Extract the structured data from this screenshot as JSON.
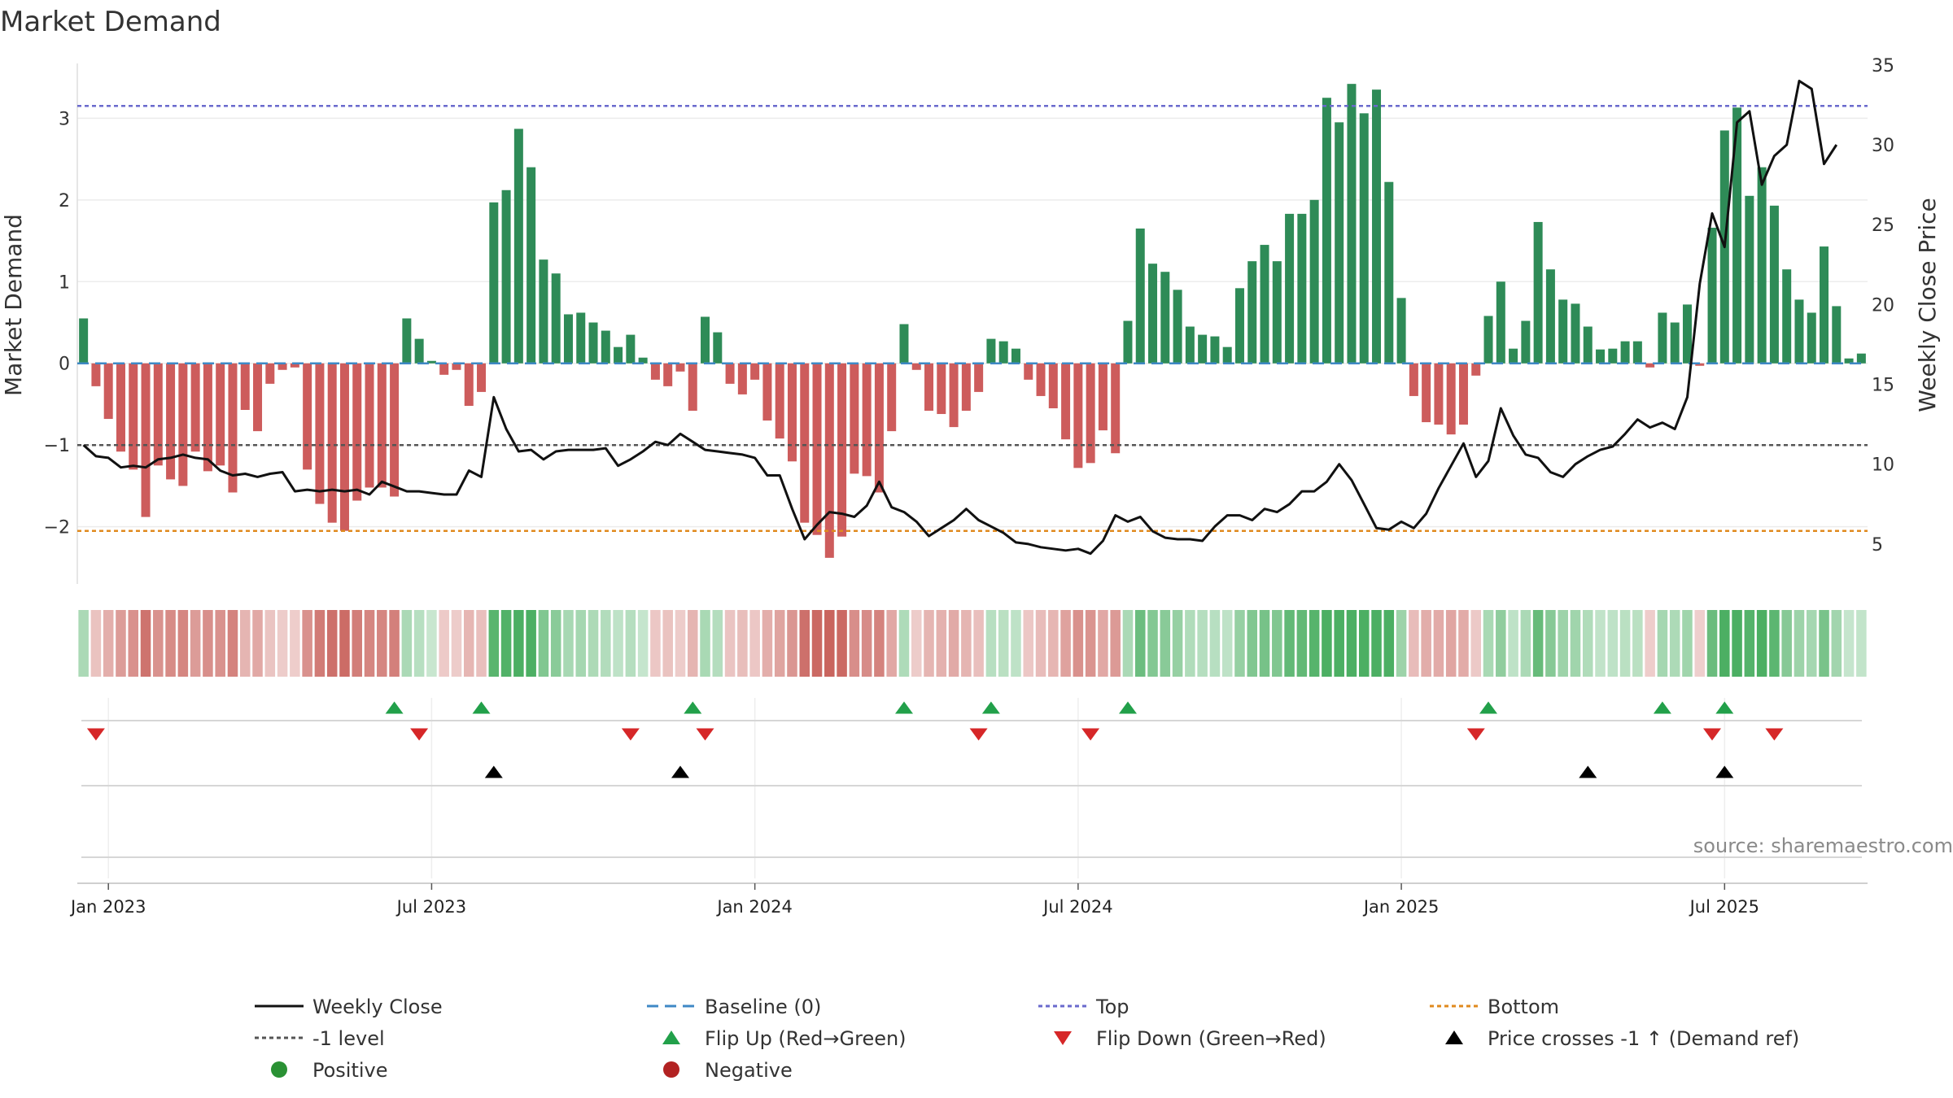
{
  "chart_data": {
    "type": "bar+line",
    "title": "Market Demand",
    "ylabel_left": "Market Demand",
    "ylabel_right": "Weekly Close Price",
    "ylim_left": [
      -2.7,
      3.75
    ],
    "ylim_right": [
      2.5,
      35.5
    ],
    "yticks_left": [
      -2,
      -1,
      0,
      1,
      2,
      3
    ],
    "ytick_labels_left": [
      "−2",
      "−1",
      "0",
      "1",
      "2",
      "3"
    ],
    "yticks_right": [
      5,
      10,
      15,
      20,
      25,
      30,
      35
    ],
    "ytick_labels_right": [
      "5",
      "10",
      "15",
      "20",
      "25",
      "30",
      "35"
    ],
    "reference_lines": {
      "top": 3.15,
      "baseline": 0,
      "minus_one": -1,
      "bottom": -2.05
    },
    "x_start_week": -1,
    "xticks": [
      {
        "week": 1,
        "label": "Jan 2023"
      },
      {
        "week": 27,
        "label": "Jul 2023"
      },
      {
        "week": 53,
        "label": "Jan 2024"
      },
      {
        "week": 79,
        "label": "Jul 2024"
      },
      {
        "week": 105,
        "label": "Jan 2025"
      },
      {
        "week": 131,
        "label": "Jul 2025"
      }
    ],
    "demand": [
      0.55,
      -0.28,
      -0.68,
      -1.08,
      -1.3,
      -1.88,
      -1.25,
      -1.42,
      -1.5,
      -1.08,
      -1.32,
      -1.25,
      -1.58,
      -0.57,
      -0.83,
      -0.25,
      -0.08,
      -0.05,
      -1.3,
      -1.72,
      -1.95,
      -2.05,
      -1.68,
      -1.52,
      -1.52,
      -1.63,
      0.55,
      0.3,
      0.03,
      -0.14,
      -0.08,
      -0.52,
      -0.35,
      1.97,
      2.12,
      2.87,
      2.4,
      1.27,
      1.1,
      0.6,
      0.62,
      0.5,
      0.4,
      0.2,
      0.35,
      0.07,
      -0.2,
      -0.28,
      -0.1,
      -0.58,
      0.57,
      0.38,
      -0.25,
      -0.38,
      -0.2,
      -0.7,
      -0.92,
      -1.2,
      -1.95,
      -2.1,
      -2.38,
      -2.12,
      -1.35,
      -1.38,
      -1.58,
      -0.83,
      0.48,
      -0.08,
      -0.58,
      -0.62,
      -0.78,
      -0.58,
      -0.35,
      0.3,
      0.27,
      0.18,
      -0.2,
      -0.4,
      -0.55,
      -0.93,
      -1.28,
      -1.22,
      -0.82,
      -1.1,
      0.52,
      1.65,
      1.22,
      1.12,
      0.9,
      0.45,
      0.35,
      0.33,
      0.2,
      0.92,
      1.25,
      1.45,
      1.25,
      1.83,
      1.83,
      2.0,
      3.25,
      2.95,
      3.42,
      3.06,
      3.35,
      2.22,
      0.8,
      -0.4,
      -0.72,
      -0.75,
      -0.87,
      -0.75,
      -0.15,
      0.58,
      1.0,
      0.18,
      0.52,
      1.73,
      1.15,
      0.78,
      0.73,
      0.45,
      0.17,
      0.18,
      0.27,
      0.27,
      -0.05,
      0.62,
      0.5,
      0.72,
      -0.03,
      1.66,
      2.85,
      3.13,
      2.05,
      2.4,
      1.93,
      1.15,
      0.78,
      0.62,
      1.43,
      0.7,
      0.06,
      0.12
    ],
    "close": [
      11.2,
      10.5,
      10.4,
      9.8,
      9.9,
      9.8,
      10.3,
      10.4,
      10.6,
      10.4,
      10.3,
      9.6,
      9.3,
      9.4,
      9.2,
      9.4,
      9.5,
      8.3,
      8.4,
      8.3,
      8.4,
      8.3,
      8.4,
      8.1,
      8.9,
      8.6,
      8.3,
      8.3,
      8.2,
      8.1,
      8.1,
      9.6,
      9.2,
      14.2,
      12.2,
      10.8,
      10.9,
      10.3,
      10.8,
      10.9,
      10.9,
      10.9,
      11.0,
      9.9,
      10.3,
      10.8,
      11.4,
      11.2,
      11.9,
      11.4,
      10.9,
      10.8,
      10.7,
      10.6,
      10.4,
      9.3,
      9.3,
      7.2,
      5.3,
      6.2,
      7.0,
      6.9,
      6.7,
      7.4,
      8.9,
      7.3,
      7.0,
      6.4,
      5.5,
      6.0,
      6.5,
      7.2,
      6.5,
      6.1,
      5.7,
      5.1,
      5.0,
      4.8,
      4.7,
      4.6,
      4.7,
      4.4,
      5.2,
      6.8,
      6.4,
      6.7,
      5.8,
      5.4,
      5.3,
      5.3,
      5.2,
      6.1,
      6.8,
      6.8,
      6.5,
      7.2,
      7.0,
      7.5,
      8.3,
      8.3,
      8.9,
      10.0,
      9.0,
      7.5,
      6.0,
      5.9,
      6.4,
      6.0,
      6.9,
      8.5,
      9.9,
      11.3,
      9.2,
      10.2,
      13.5,
      11.8,
      10.6,
      10.4,
      9.5,
      9.2,
      10.0,
      10.5,
      10.9,
      11.1,
      11.9,
      12.8,
      12.3,
      12.6,
      12.2,
      14.2,
      21.3,
      25.7,
      23.6,
      31.4,
      32.1,
      27.5,
      29.3,
      30.0,
      34.0,
      33.5,
      28.8,
      30.0
    ],
    "flip_up_weeks": [
      24,
      31,
      48,
      65,
      72,
      83,
      112,
      126,
      131
    ],
    "flip_down_weeks": [
      0,
      26,
      43,
      49,
      71,
      80,
      111,
      130,
      135
    ],
    "price_cross_weeks": [
      32,
      47,
      120,
      131
    ],
    "source": "source: sharemaestro.com",
    "legend": [
      {
        "label": "Weekly Close",
        "marker": "line-solid",
        "color": "#111111"
      },
      {
        "label": "Baseline (0)",
        "marker": "line-dash",
        "color": "#3f88c5"
      },
      {
        "label": "Top",
        "marker": "line-dot",
        "color": "#6a6acd"
      },
      {
        "label": "Bottom",
        "marker": "line-dot",
        "color": "#e08a1e"
      },
      {
        "label": "-1 level",
        "marker": "line-dot",
        "color": "#555555"
      },
      {
        "label": "Flip Up (Red→Green)",
        "marker": "triangle-up",
        "color": "#22a04a"
      },
      {
        "label": "Flip Down (Green→Red)",
        "marker": "triangle-down",
        "color": "#d62728"
      },
      {
        "label": "Price crosses -1 ↑ (Demand ref)",
        "marker": "triangle-up",
        "color": "#000000"
      },
      {
        "label": "Positive",
        "marker": "circle",
        "color": "#2a9134"
      },
      {
        "label": "Negative",
        "marker": "circle",
        "color": "#b22222"
      }
    ],
    "colors": {
      "positive": "#2e8b57",
      "negative": "#cd5c5c",
      "close": "#111111",
      "heat_pos": "#4caf63",
      "heat_neg": "#c9645e"
    }
  }
}
